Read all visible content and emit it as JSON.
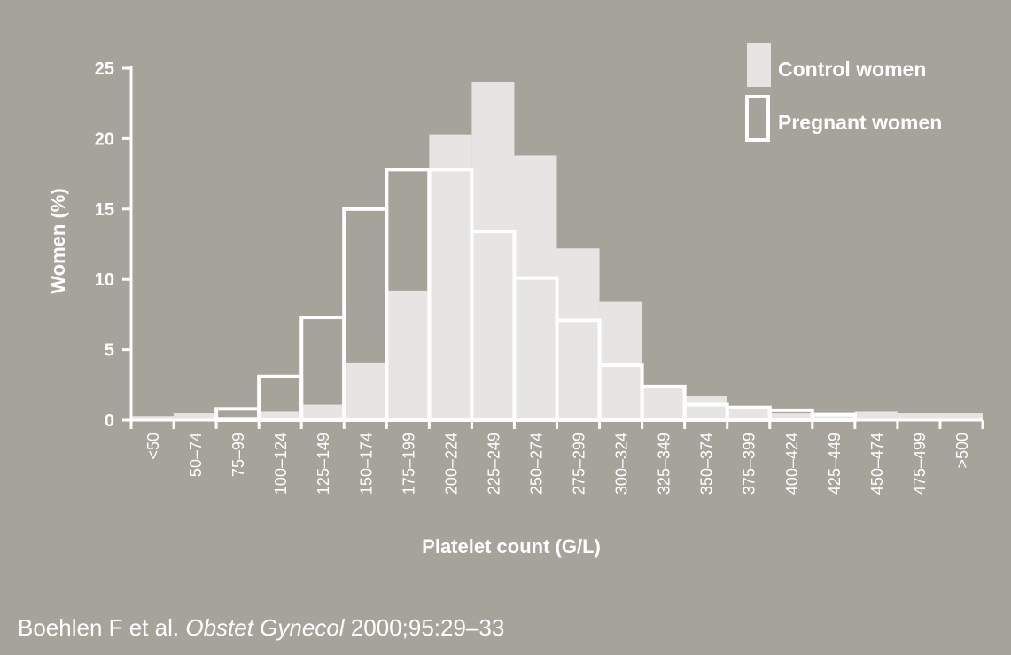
{
  "chart_data": {
    "type": "bar",
    "xlabel": "Platelet count (G/L)",
    "ylabel": "Women (%)",
    "ylim": [
      0,
      25
    ],
    "yticks": [
      0,
      5,
      10,
      15,
      20,
      25
    ],
    "grid": false,
    "legend_position": "top-right",
    "categories": [
      "<50",
      "50–74",
      "75–99",
      "100–124",
      "125–149",
      "150–174",
      "175–199",
      "200–224",
      "225–249",
      "250–274",
      "275–299",
      "300–324",
      "325–349",
      "350–374",
      "375–399",
      "400–424",
      "425–449",
      "450–474",
      "475–499",
      ">500"
    ],
    "series": [
      {
        "name": "Control women",
        "style": "filled",
        "color": "#e6e5e3",
        "values": [
          0.3,
          0.5,
          0.2,
          0.6,
          1.1,
          4.1,
          9.2,
          20.3,
          24.0,
          18.8,
          12.2,
          8.4,
          2.4,
          1.7,
          1.0,
          0.5,
          0.5,
          0.6,
          0.5,
          0.5
        ]
      },
      {
        "name": "Pregnant women",
        "style": "outline",
        "color": "#ffffff",
        "values": [
          0.0,
          0.0,
          0.8,
          3.1,
          7.3,
          15.0,
          17.8,
          17.8,
          13.4,
          10.1,
          7.1,
          3.9,
          2.4,
          1.1,
          0.9,
          0.7,
          0.4,
          0.0,
          0.0,
          0.0
        ]
      }
    ]
  },
  "citation": {
    "authors": "Boehlen F et al.",
    "journal": "Obstet Gynecol",
    "details": "2000;95:29–33"
  }
}
